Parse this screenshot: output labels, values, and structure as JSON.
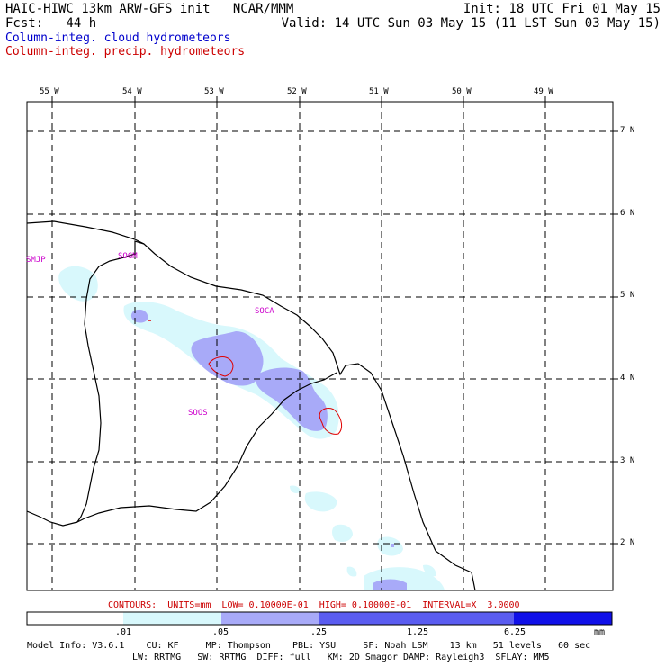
{
  "header": {
    "line1_left": "HAIC-HIWC 13km ARW-GFS init   NCAR/MMM",
    "line1_right": "Init: 18 UTC Fri 01 May 15",
    "line2_left": "Fcst:   44 h",
    "line2_right": "Valid: 14 UTC Sun 03 May 15 (11 LST Sun 03 May 15)",
    "field1": "Column-integ. cloud hydrometeors",
    "field1_color": "#0000cc",
    "field2": "Column-integ. precip. hydrometeors",
    "field2_color": "#cc0000"
  },
  "map": {
    "lon_labels": [
      "55 W",
      "54 W",
      "53 W",
      "52 W",
      "51 W",
      "50 W",
      "49 W"
    ],
    "lat_labels": [
      "7 N",
      "6 N",
      "5 N",
      "4 N",
      "3 N",
      "2 N"
    ],
    "stations": [
      "SMJP",
      "SOGM",
      "SOCA",
      "SOOS"
    ],
    "shading_colors": [
      "#ffffff",
      "#d8f8fc",
      "#a8aaf8",
      "#5a5cf0",
      "#1010e8"
    ]
  },
  "contour_info": "CONTOURS:  UNITS=mm  LOW= 0.10000E-01  HIGH= 0.10000E-01  INTERVAL=X  3.0000",
  "contour_info_color": "#cc0000",
  "legend": {
    "ticks": [
      ".01",
      ".05",
      ".25",
      "1.25",
      "6.25"
    ],
    "unit": "mm"
  },
  "footer": {
    "line1": "Model Info: V3.6.1    CU: KF     MP: Thompson    PBL: YSU     SF: Noah LSM    13 km   51 levels   60 sec",
    "line2": "LW: RRTMG   SW: RRTMG  DIFF: full   KM: 2D Smagor DAMP: Rayleigh3  SFLAY: MM5"
  }
}
